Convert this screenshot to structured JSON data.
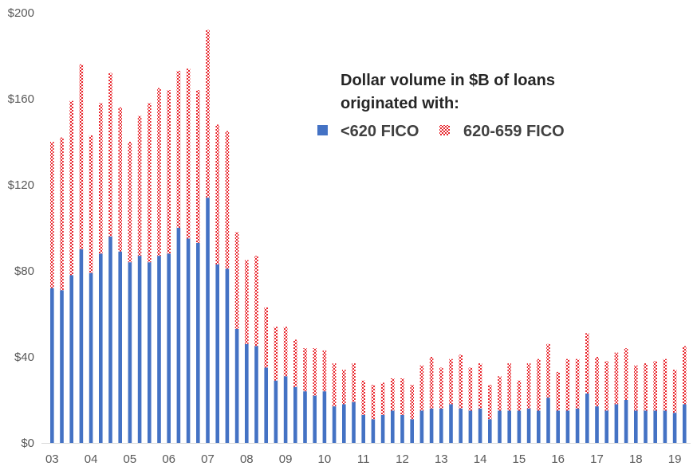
{
  "chart_data": {
    "type": "bar",
    "stacked": true,
    "title_lines": [
      "Dollar volume in $B of loans",
      "originated with:"
    ],
    "legend_position": "top-right",
    "ylim": [
      0,
      200
    ],
    "y_ticks": [
      0,
      40,
      80,
      120,
      160,
      200
    ],
    "y_tick_labels": [
      "$0",
      "$40",
      "$80",
      "$120",
      "$160",
      "$200"
    ],
    "x_tick_labels": [
      "03",
      "04",
      "05",
      "06",
      "07",
      "08",
      "09",
      "10",
      "11",
      "12",
      "13",
      "14",
      "15",
      "16",
      "17",
      "18",
      "19"
    ],
    "grid": false,
    "series": [
      {
        "name": "<620 FICO",
        "color": "#4472C4",
        "pattern": "solid",
        "values": [
          72,
          71,
          78,
          90,
          79,
          88,
          96,
          89,
          84,
          87,
          84,
          87,
          88,
          100,
          95,
          93,
          114,
          83,
          81,
          53,
          46,
          45,
          35,
          29,
          31,
          26,
          24,
          22,
          24,
          17,
          18,
          19,
          13,
          11,
          13,
          15,
          13,
          11,
          15,
          16,
          16,
          18,
          16,
          15,
          16,
          11,
          15,
          15,
          15,
          16,
          15,
          21,
          15,
          15,
          16,
          23,
          17,
          15,
          18,
          20,
          15,
          15,
          15,
          15,
          14,
          18
        ]
      },
      {
        "name": "620-659 FICO",
        "color": "#E8262D",
        "pattern": "crosshatch",
        "values": [
          68,
          71,
          81,
          86,
          64,
          70,
          76,
          67,
          56,
          65,
          74,
          78,
          76,
          73,
          79,
          71,
          78,
          65,
          64,
          45,
          39,
          42,
          28,
          25,
          23,
          22,
          20,
          22,
          19,
          20,
          16,
          18,
          16,
          16,
          15,
          15,
          17,
          16,
          21,
          24,
          19,
          21,
          25,
          20,
          21,
          16,
          16,
          22,
          14,
          21,
          24,
          25,
          18,
          24,
          23,
          28,
          23,
          23,
          24,
          24,
          21,
          22,
          23,
          24,
          20,
          27
        ]
      }
    ]
  }
}
